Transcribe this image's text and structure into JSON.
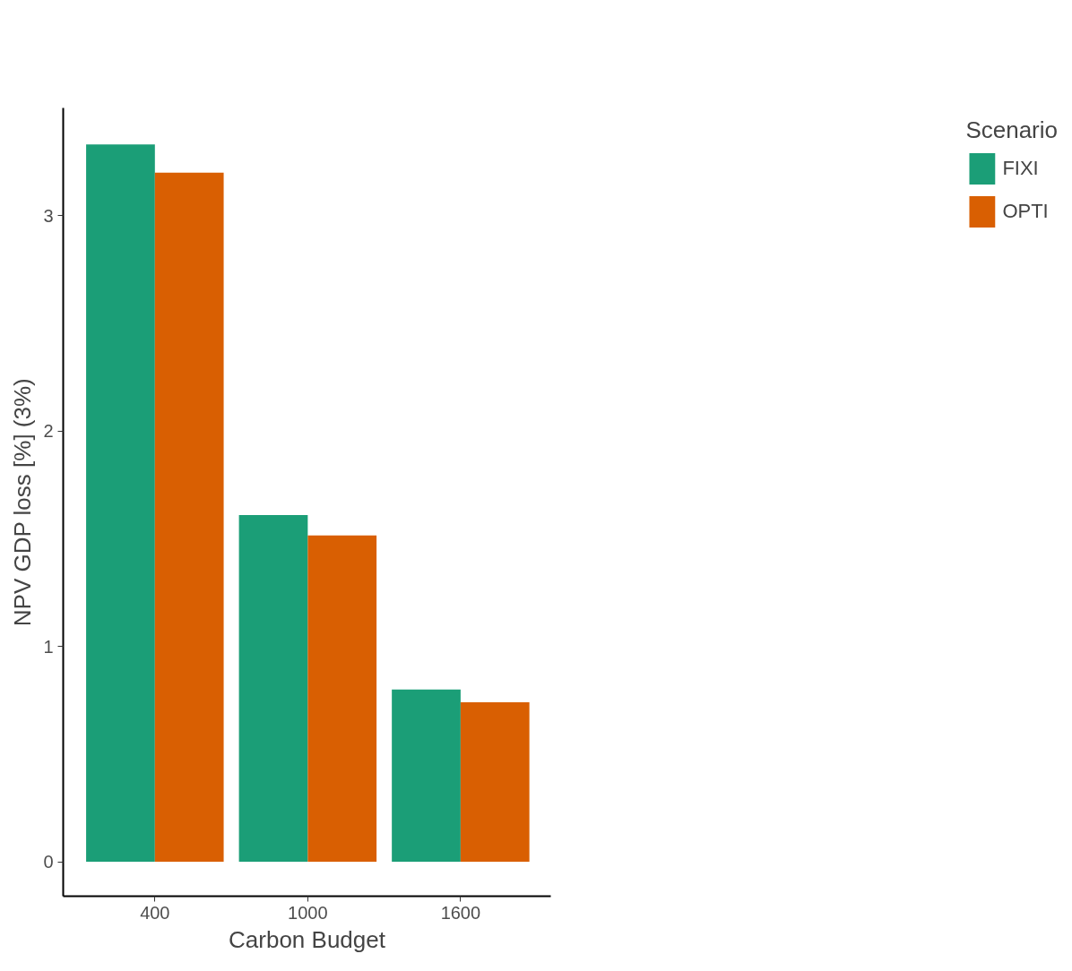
{
  "chart_data": {
    "type": "bar",
    "xlabel": "Carbon Budget",
    "ylabel": "NPV GDP loss [%] (3%)",
    "legend_title": "Scenario",
    "categories": [
      "400",
      "1000",
      "1600"
    ],
    "series": [
      {
        "name": "FIXI",
        "color": "#1b9e77",
        "values": [
          3.33,
          1.61,
          0.8
        ]
      },
      {
        "name": "OPTI",
        "color": "#d95f02",
        "values": [
          3.2,
          1.515,
          0.74
        ]
      }
    ],
    "ylim": [
      -0.16,
      3.5
    ],
    "yticks": [
      0,
      1,
      2,
      3
    ],
    "grid": false,
    "legend": "right"
  }
}
